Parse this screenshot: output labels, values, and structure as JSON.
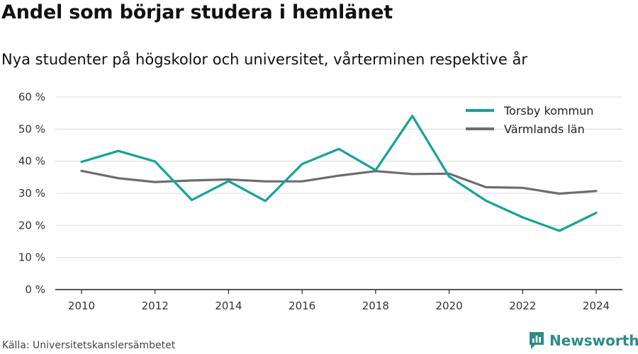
{
  "title": "Andel som börjar studera i hemlänet",
  "subtitle": "Nya studenter på högskolor och universitet, vårterminen respektive år",
  "source": "Källa: Universitetskanslersämbetet",
  "brand": {
    "name": "Newsworthy",
    "color": "#2a8c8a",
    "icon": "bar-chart-icon"
  },
  "chart_data": {
    "type": "line",
    "x": [
      2010,
      2011,
      2012,
      2013,
      2014,
      2015,
      2016,
      2017,
      2018,
      2019,
      2020,
      2021,
      2022,
      2023,
      2024
    ],
    "x_ticks": [
      "2010",
      "2012",
      "2014",
      "2016",
      "2018",
      "2020",
      "2022",
      "2024"
    ],
    "y_ticks": [
      "0 %",
      "10 %",
      "20 %",
      "30 %",
      "40 %",
      "50 %",
      "60 %"
    ],
    "ylim": [
      0,
      60
    ],
    "grid": true,
    "legend_position": "top-right",
    "series": [
      {
        "name": "Torsby kommun",
        "color": "#12a39a",
        "values": [
          39.8,
          43.2,
          39.9,
          27.9,
          33.8,
          27.6,
          39.1,
          43.8,
          37.2,
          54.1,
          35.2,
          27.7,
          22.5,
          18.3,
          23.9
        ]
      },
      {
        "name": "Värmlands län",
        "color": "#6e6c72",
        "values": [
          37.0,
          34.7,
          33.5,
          34.0,
          34.3,
          33.7,
          33.7,
          35.5,
          36.9,
          36.0,
          36.1,
          31.9,
          31.7,
          29.9,
          30.7
        ]
      }
    ]
  }
}
